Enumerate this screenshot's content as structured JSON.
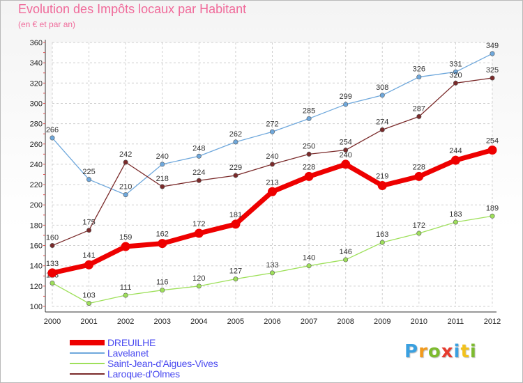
{
  "header": {
    "title": "Evolution des Impôts locaux par Habitant",
    "subtitle": "(en € et par an)"
  },
  "logo": {
    "text": "Proxiti",
    "colors": [
      "#3aa0e0",
      "#f29a1c",
      "#7dbb2f",
      "#e63b2e",
      "#3aa0e0",
      "#f2c21c",
      "#7dbb2f"
    ]
  },
  "chart_data": {
    "type": "line",
    "title": "Evolution des Impôts locaux par Habitant",
    "subtitle": "(en € et par an)",
    "xlabel": "",
    "ylabel": "",
    "x": [
      "2000",
      "2001",
      "2002",
      "2003",
      "2004",
      "2005",
      "2006",
      "2007",
      "2008",
      "2009",
      "2010",
      "2011",
      "2012"
    ],
    "ylim": [
      100,
      360
    ],
    "yticks": [
      100,
      120,
      140,
      160,
      180,
      200,
      220,
      240,
      260,
      280,
      300,
      320,
      340,
      360
    ],
    "grid": true,
    "legend_position": "bottom-left",
    "series": [
      {
        "name": "DREUILHE",
        "color": "#ee0000",
        "emphasis": true,
        "values": [
          133,
          141,
          159,
          162,
          172,
          181,
          213,
          228,
          240,
          219,
          228,
          244,
          254
        ]
      },
      {
        "name": "Lavelanet",
        "color": "#6fa8dc",
        "values": [
          266,
          225,
          210,
          240,
          248,
          262,
          272,
          285,
          299,
          308,
          326,
          331,
          349
        ]
      },
      {
        "name": "Saint-Jean-d'Aigues-Vives",
        "color": "#9ee05a",
        "values": [
          123,
          103,
          111,
          116,
          120,
          127,
          133,
          140,
          146,
          163,
          172,
          183,
          189
        ]
      },
      {
        "name": "Laroque-d'Olmes",
        "color": "#7a2a2a",
        "values": [
          160,
          175,
          242,
          218,
          224,
          229,
          240,
          250,
          254,
          274,
          287,
          320,
          325
        ]
      }
    ]
  }
}
